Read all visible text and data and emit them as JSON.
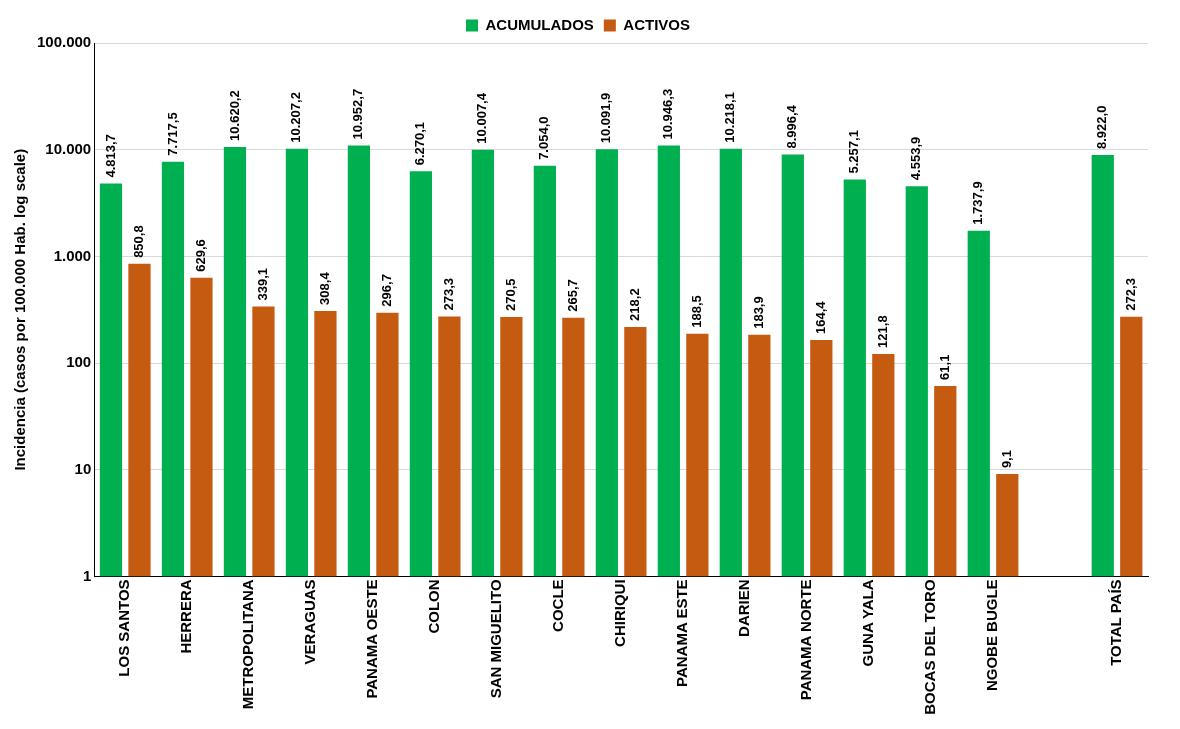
{
  "chart_data": {
    "type": "bar",
    "ylabel": "Incidencia (casos por 100.000 Hab. log scale)",
    "log": "y",
    "grid": "y",
    "legend": "top",
    "ylim": [
      1,
      100000
    ],
    "yticks": [
      1,
      10,
      100,
      {
        "value": 1000,
        "label": "1.000"
      },
      {
        "value": 10000,
        "label": "10.000"
      },
      {
        "value": 100000,
        "label": "100.000"
      }
    ],
    "categories": [
      "LOS SANTOS",
      "HERRERA",
      "METROPOLITANA",
      "VERAGUAS",
      "PANAMA OESTE",
      "COLON",
      "SAN MIGUELITO",
      "COCLE",
      "CHIRIQUI",
      "PANAMA ESTE",
      "DARIEN",
      "PANAMA NORTE",
      "GUNA YALA",
      "BOCAS DEL TORO",
      "NGOBE BUGLE",
      null,
      "TOTAL PAÍS"
    ],
    "series": [
      {
        "name": "ACUMULADOS",
        "color": "#00b050",
        "values": [
          4813.7,
          7717.5,
          10620.2,
          10207.2,
          10952.7,
          6270.1,
          10007.4,
          7054.0,
          10091.9,
          10946.3,
          10218.1,
          8996.4,
          5257.1,
          4553.9,
          1737.9,
          null,
          8922.0
        ],
        "value_labels": [
          "4.813,7",
          "7.717,5",
          "10.620,2",
          "10.207,2",
          "10.952,7",
          "6.270,1",
          "10.007,4",
          "7.054,0",
          "10.091,9",
          "10.946,3",
          "10.218,1",
          "8.996,4",
          "5.257,1",
          "4.553,9",
          "1.737,9",
          null,
          "8.922,0"
        ]
      },
      {
        "name": "ACTIVOS",
        "color": "#c55a11",
        "values": [
          850.8,
          629.6,
          339.1,
          308.4,
          296.7,
          273.3,
          270.5,
          265.7,
          218.2,
          188.5,
          183.9,
          164.4,
          121.8,
          61.1,
          9.1,
          null,
          272.3
        ],
        "value_labels": [
          "850,8",
          "629,6",
          "339,1",
          "308,4",
          "296,7",
          "273,3",
          "270,5",
          "265,7",
          "218,2",
          "188,5",
          "183,9",
          "164,4",
          "121,8",
          "61,1",
          "9,1",
          null,
          "272,3"
        ]
      }
    ]
  }
}
